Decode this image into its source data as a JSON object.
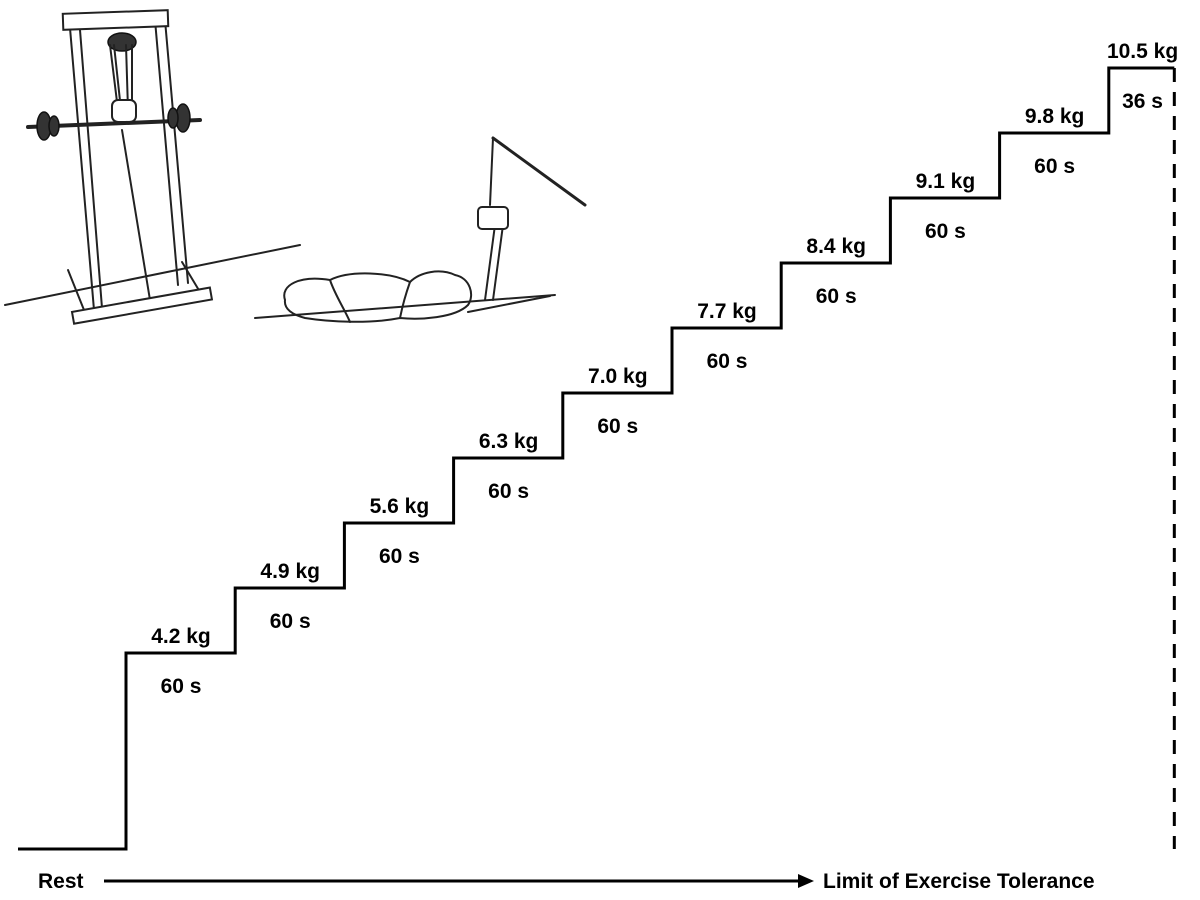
{
  "chart_data": {
    "type": "line",
    "title": "",
    "xlabel": "",
    "ylabel": "",
    "steps": [
      {
        "load": "4.2 kg",
        "duration": "60 s",
        "load_kg": 4.2,
        "duration_s": 60
      },
      {
        "load": "4.9 kg",
        "duration": "60 s",
        "load_kg": 4.9,
        "duration_s": 60
      },
      {
        "load": "5.6 kg",
        "duration": "60 s",
        "load_kg": 5.6,
        "duration_s": 60
      },
      {
        "load": "6.3 kg",
        "duration": "60 s",
        "load_kg": 6.3,
        "duration_s": 60
      },
      {
        "load": "7.0 kg",
        "duration": "60 s",
        "load_kg": 7.0,
        "duration_s": 60
      },
      {
        "load": "7.7 kg",
        "duration": "60 s",
        "load_kg": 7.7,
        "duration_s": 60
      },
      {
        "load": "8.4 kg",
        "duration": "60 s",
        "load_kg": 8.4,
        "duration_s": 60
      },
      {
        "load": "9.1 kg",
        "duration": "60 s",
        "load_kg": 9.1,
        "duration_s": 60
      },
      {
        "load": "9.8 kg",
        "duration": "60 s",
        "load_kg": 9.8,
        "duration_s": 60
      },
      {
        "load": "10.5 kg",
        "duration": "36 s",
        "load_kg": 10.5,
        "duration_s": 36
      }
    ],
    "axis": {
      "start_label": "Rest",
      "end_label": "Limit of Exercise Tolerance"
    }
  },
  "illustration": {
    "subject": "exercise-apparatus-sketch"
  },
  "colors": {
    "line": "#000000",
    "background": "#ffffff"
  }
}
